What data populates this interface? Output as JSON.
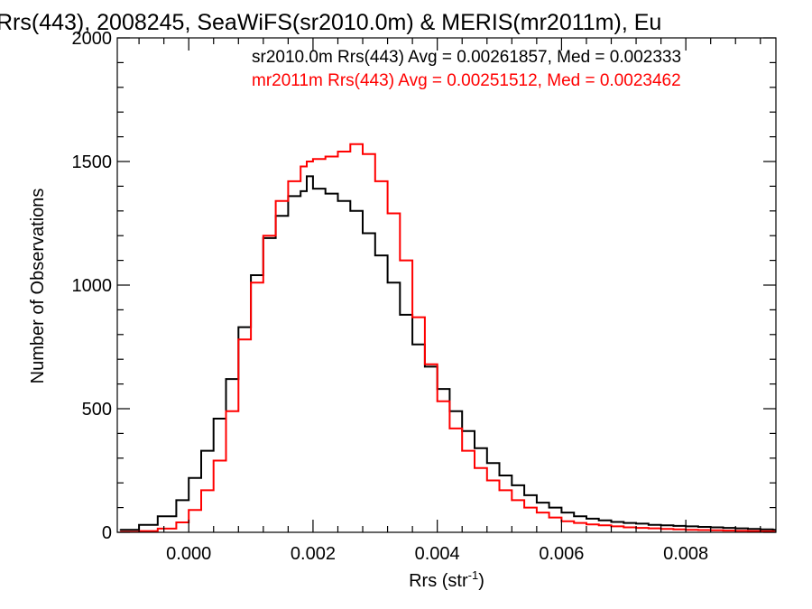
{
  "chart_data": {
    "type": "line",
    "title": "Rrs(443), 2008245, SeaWiFS(sr2010.0m) & MERIS(mr2011m), Eu",
    "xlabel": "Rrs (str",
    "xlabel_sup": "-1",
    "xlabel_close": ")",
    "ylabel": "Number of Observations",
    "xlim": [
      -0.00115,
      0.00945
    ],
    "ylim": [
      0,
      2000
    ],
    "x_ticks": [
      0.0,
      0.002,
      0.004,
      0.006,
      0.008
    ],
    "x_tick_labels": [
      "0.000",
      "0.002",
      "0.004",
      "0.006",
      "0.008"
    ],
    "y_ticks": [
      0,
      500,
      1000,
      1500,
      2000
    ],
    "y_tick_labels": [
      "0",
      "500",
      "1000",
      "1500",
      "2000"
    ],
    "grid": false,
    "style": "histogram-step",
    "annotations": [
      {
        "text": "sr2010.0m Rrs(443) Avg = 0.00261857, Med = 0.002333",
        "color": "#000000"
      },
      {
        "text": "mr2011m Rrs(443) Avg = 0.00251512, Med = 0.0023462",
        "color": "#ff0000"
      }
    ],
    "series": [
      {
        "name": "sr2010.0m",
        "color": "#000000",
        "x": [
          -0.0011,
          -0.0008,
          -0.0005,
          -0.0002,
          0.0,
          0.0002,
          0.0004,
          0.0006,
          0.0008,
          0.001,
          0.0012,
          0.0014,
          0.0016,
          0.0018,
          0.0019,
          0.002,
          0.0022,
          0.0024,
          0.0026,
          0.0028,
          0.003,
          0.0032,
          0.0034,
          0.0036,
          0.0038,
          0.004,
          0.0042,
          0.0044,
          0.0046,
          0.0048,
          0.005,
          0.0052,
          0.0054,
          0.0056,
          0.0058,
          0.006,
          0.0062,
          0.0064,
          0.0066,
          0.0068,
          0.007,
          0.0072,
          0.0074,
          0.0076,
          0.0078,
          0.008,
          0.0082,
          0.0084,
          0.0086,
          0.0088,
          0.009,
          0.0092,
          0.0094
        ],
        "values": [
          10,
          30,
          65,
          130,
          220,
          330,
          460,
          620,
          830,
          1040,
          1190,
          1280,
          1360,
          1380,
          1440,
          1390,
          1370,
          1340,
          1300,
          1210,
          1120,
          1010,
          880,
          760,
          670,
          580,
          490,
          410,
          340,
          280,
          230,
          190,
          150,
          120,
          100,
          80,
          65,
          55,
          48,
          42,
          38,
          35,
          30,
          28,
          26,
          24,
          22,
          20,
          18,
          16,
          14,
          12,
          10
        ]
      },
      {
        "name": "mr2011m",
        "color": "#ff0000",
        "x": [
          -0.0011,
          -0.0008,
          -0.0005,
          -0.0002,
          0.0,
          0.0002,
          0.0004,
          0.0006,
          0.0008,
          0.001,
          0.0012,
          0.0014,
          0.0016,
          0.0018,
          0.0019,
          0.002,
          0.0022,
          0.0024,
          0.0026,
          0.0028,
          0.003,
          0.0032,
          0.0034,
          0.0036,
          0.0038,
          0.004,
          0.0042,
          0.0044,
          0.0046,
          0.0048,
          0.005,
          0.0052,
          0.0054,
          0.0056,
          0.0058,
          0.006,
          0.0062,
          0.0064,
          0.0066,
          0.0068,
          0.007,
          0.0072,
          0.0074,
          0.0076,
          0.0078,
          0.008,
          0.0082,
          0.0084,
          0.0086,
          0.0088,
          0.009,
          0.0092,
          0.0094
        ],
        "values": [
          2,
          5,
          15,
          40,
          90,
          170,
          290,
          490,
          780,
          1010,
          1200,
          1340,
          1420,
          1480,
          1500,
          1510,
          1520,
          1540,
          1570,
          1530,
          1420,
          1290,
          1100,
          870,
          680,
          530,
          420,
          330,
          260,
          210,
          170,
          130,
          100,
          80,
          60,
          45,
          38,
          32,
          28,
          24,
          20,
          18,
          16,
          14,
          12,
          10,
          9,
          8,
          7,
          6,
          5,
          4,
          3
        ]
      }
    ]
  }
}
